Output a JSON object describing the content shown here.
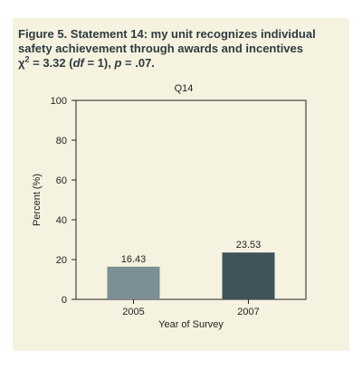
{
  "figure": {
    "title_line1": "Figure 5. Statement 14: my unit recognizes individual",
    "title_line2": "safety achievement through awards and incentives",
    "stat_chi": "χ",
    "stat_sup": "2",
    "stat_eq": " = 3.32 (",
    "stat_df": "df",
    "stat_df_val": " = 1), ",
    "stat_p": "p",
    "stat_p_val": " = .07."
  },
  "chart_data": {
    "type": "bar",
    "title": "Q14",
    "xlabel": "Year of Survey",
    "ylabel": "Percent (%)",
    "ylim": [
      0,
      100
    ],
    "yticks": [
      0,
      20,
      40,
      60,
      80,
      100
    ],
    "categories": [
      "2005",
      "2007"
    ],
    "values": [
      16.43,
      23.53
    ],
    "value_labels": [
      "16.43",
      "23.53"
    ],
    "colors": [
      "#7c8f94",
      "#3e5459"
    ],
    "grid": false,
    "legend": "none"
  }
}
